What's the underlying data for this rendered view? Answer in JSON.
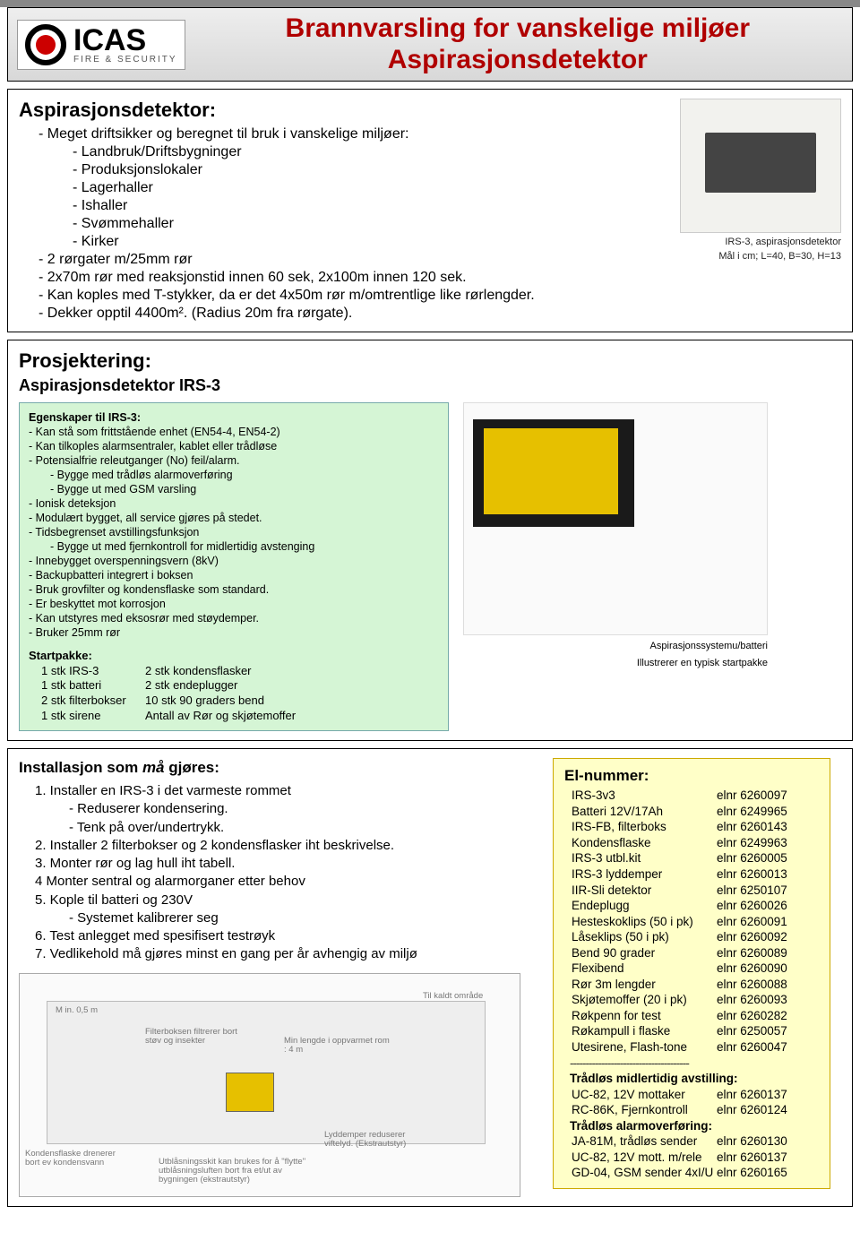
{
  "logo": {
    "name": "ICAS",
    "sub": "FIRE & SECURITY"
  },
  "header": {
    "line1": "Brannvarsling for vanskelige miljøer",
    "line2": "Aspirasjonsdetektor"
  },
  "section1": {
    "title": "Aspirasjonsdetektor:",
    "lines": [
      {
        "cls": "li1",
        "t": "- Meget driftsikker og beregnet til bruk i vanskelige miljøer:"
      },
      {
        "cls": "li2",
        "t": "- Landbruk/Driftsbygninger"
      },
      {
        "cls": "li2",
        "t": "- Produksjonslokaler"
      },
      {
        "cls": "li2",
        "t": "- Lagerhaller"
      },
      {
        "cls": "li2",
        "t": "- Ishaller"
      },
      {
        "cls": "li2",
        "t": "- Svømmehaller"
      },
      {
        "cls": "li2",
        "t": "- Kirker"
      },
      {
        "cls": "li1",
        "t": "- 2 rørgater m/25mm rør"
      },
      {
        "cls": "li1",
        "t": "- 2x70m rør med reaksjonstid innen 60 sek, 2x100m innen 120 sek."
      },
      {
        "cls": "li1",
        "t": "- Kan koples med T-stykker, da er det 4x50m rør m/omtrentlige like rørlengder."
      },
      {
        "cls": "li1",
        "t": "- Dekker opptil 4400m². (Radius 20m fra rørgate)."
      }
    ],
    "photo_cap1": "IRS-3, aspirasjonsdetektor",
    "photo_cap2": "Mål i cm; L=40, B=30, H=13"
  },
  "section2": {
    "title": "Prosjektering:",
    "subtitle": "Aspirasjonsdetektor IRS-3",
    "card_title": "Egenskaper til IRS-3:",
    "card_lines": [
      {
        "cls": "l1",
        "t": "- Kan stå som frittstående enhet (EN54-4, EN54-2)"
      },
      {
        "cls": "l1",
        "t": "- Kan tilkoples alarmsentraler, kablet eller trådløse"
      },
      {
        "cls": "l1",
        "t": "- Potensialfrie releutganger (No) feil/alarm."
      },
      {
        "cls": "l2",
        "t": "- Bygge med trådløs alarmoverføring"
      },
      {
        "cls": "l2",
        "t": "- Bygge ut med GSM varsling"
      },
      {
        "cls": "l1",
        "t": "- Ionisk deteksjon"
      },
      {
        "cls": "l1",
        "t": "- Modulært bygget, all service gjøres på stedet."
      },
      {
        "cls": "l1",
        "t": "- Tidsbegrenset avstillingsfunksjon"
      },
      {
        "cls": "l2",
        "t": "- Bygge ut med fjernkontroll for midlertidig avstenging"
      },
      {
        "cls": "l1",
        "t": "- Innebygget overspenningsvern (8kV)"
      },
      {
        "cls": "l1",
        "t": "- Backupbatteri integrert i boksen"
      },
      {
        "cls": "l1",
        "t": "- Bruk grovfilter og kondensflaske som standard."
      },
      {
        "cls": "l1",
        "t": "- Er beskyttet mot korrosjon"
      },
      {
        "cls": "l1",
        "t": "- Kan utstyres med eksosrør med støydemper."
      },
      {
        "cls": "l1",
        "t": "- Bruker 25mm rør"
      }
    ],
    "kit_title": "Startpakke:",
    "kit_rows": [
      {
        "c1": "1 stk IRS-3",
        "c2": "2 stk kondensflasker"
      },
      {
        "c1": "1 stk batteri",
        "c2": "2 stk endeplugger"
      },
      {
        "c1": "2 stk filterbokser",
        "c2": "10 stk 90 graders bend"
      },
      {
        "c1": "1 stk sirene",
        "c2": "Antall av Rør og skjøtemoffer"
      }
    ],
    "kit_cap1": "Aspirasjonssystemu/batteri",
    "kit_cap2": "Illustrerer en typisk startpakke"
  },
  "section3": {
    "install_title": "Installasjon som <em>må</em> gjøres:",
    "install_lines": [
      {
        "cls": "i1",
        "t": "1. Installer en IRS-3 i det varmeste rommet"
      },
      {
        "cls": "i2",
        "t": "- Reduserer kondensering."
      },
      {
        "cls": "i2",
        "t": "- Tenk på over/undertrykk."
      },
      {
        "cls": "i1",
        "t": "2. Installer 2 filterbokser og 2 kondensflasker iht beskrivelse."
      },
      {
        "cls": "i1",
        "t": "3. Monter rør og lag hull iht tabell."
      },
      {
        "cls": "i1",
        "t": "4 Monter sentral og alarmorganer etter behov"
      },
      {
        "cls": "i1",
        "t": "5. Kople til batteri og 230V"
      },
      {
        "cls": "i2",
        "t": "- Systemet kalibrerer seg"
      },
      {
        "cls": "i1",
        "t": "6. Test anlegget med spesifisert testrøyk"
      },
      {
        "cls": "i1",
        "t": "7. Vedlikehold må gjøres minst en gang per år avhengig av miljø"
      }
    ],
    "diagram_notes": {
      "n1": "M in. 0,5 m",
      "n2": "Filterboksen filtrerer bort støv og insekter",
      "n3": "Min lengde i oppvarmet rom : 4 m",
      "n4": "Til kaldt område",
      "n5": "Kondensflaske drenerer bort ev kondensvann",
      "n6": "Lyddemper reduserer viftelyd. (Ekstrautstyr)",
      "n7": "Utblåsningsskit kan brukes for å \"flytte\" utblåsningsluften bort fra et/ut av bygningen (ekstrautstyr)"
    },
    "elnr": {
      "title": "El-nummer:",
      "rows": [
        {
          "n": "IRS-3v3",
          "e": "elnr 6260097"
        },
        {
          "n": "Batteri 12V/17Ah",
          "e": "elnr 6249965"
        },
        {
          "n": "IRS-FB, filterboks",
          "e": "elnr 6260143"
        },
        {
          "n": "Kondensflaske",
          "e": "elnr 6249963"
        },
        {
          "n": "IRS-3 utbl.kit",
          "e": "elnr 6260005"
        },
        {
          "n": "IRS-3 lyddemper",
          "e": "elnr 6260013"
        },
        {
          "n": "IIR-Sli detektor",
          "e": "elnr 6250107"
        },
        {
          "n": "Endeplugg",
          "e": "elnr 6260026"
        },
        {
          "n": "Hesteskoklips (50 i pk)",
          "e": "elnr 6260091"
        },
        {
          "n": "Låseklips    (50 i pk)",
          "e": "elnr 6260092"
        },
        {
          "n": "Bend 90 grader",
          "e": "elnr 6260089"
        },
        {
          "n": "Flexibend",
          "e": "elnr 6260090"
        },
        {
          "n": "Rør 3m lengder",
          "e": "elnr 6260088"
        },
        {
          "n": "Skjøtemoffer (20 i pk)",
          "e": "elnr 6260093"
        },
        {
          "n": "Røkpenn for test",
          "e": "elnr 6260282"
        },
        {
          "n": "Røkampull i flaske",
          "e": "elnr 6250057"
        },
        {
          "n": "Utesirene, Flash-tone",
          "e": "elnr 6260047"
        }
      ],
      "sep": "--------------------------------------",
      "sub1": "Trådløs midlertidig avstilling:",
      "rows2": [
        {
          "n": "UC-82, 12V mottaker",
          "e": "elnr 6260137"
        },
        {
          "n": "RC-86K, Fjernkontroll",
          "e": "elnr 6260124"
        }
      ],
      "sub2": "Trådløs alarmoverføring:",
      "rows3": [
        {
          "n": "JA-81M, trådløs sender",
          "e": "elnr 6260130"
        },
        {
          "n": "UC-82, 12V mott. m/rele",
          "e": "elnr 6260137"
        },
        {
          "n": "GD-04, GSM sender 4xI/U",
          "e": "elnr 6260165"
        }
      ]
    }
  },
  "colors": {
    "accent_red": "#b00000",
    "card_green": "#d5f5d5",
    "elnr_bg": "#ffffc8"
  }
}
